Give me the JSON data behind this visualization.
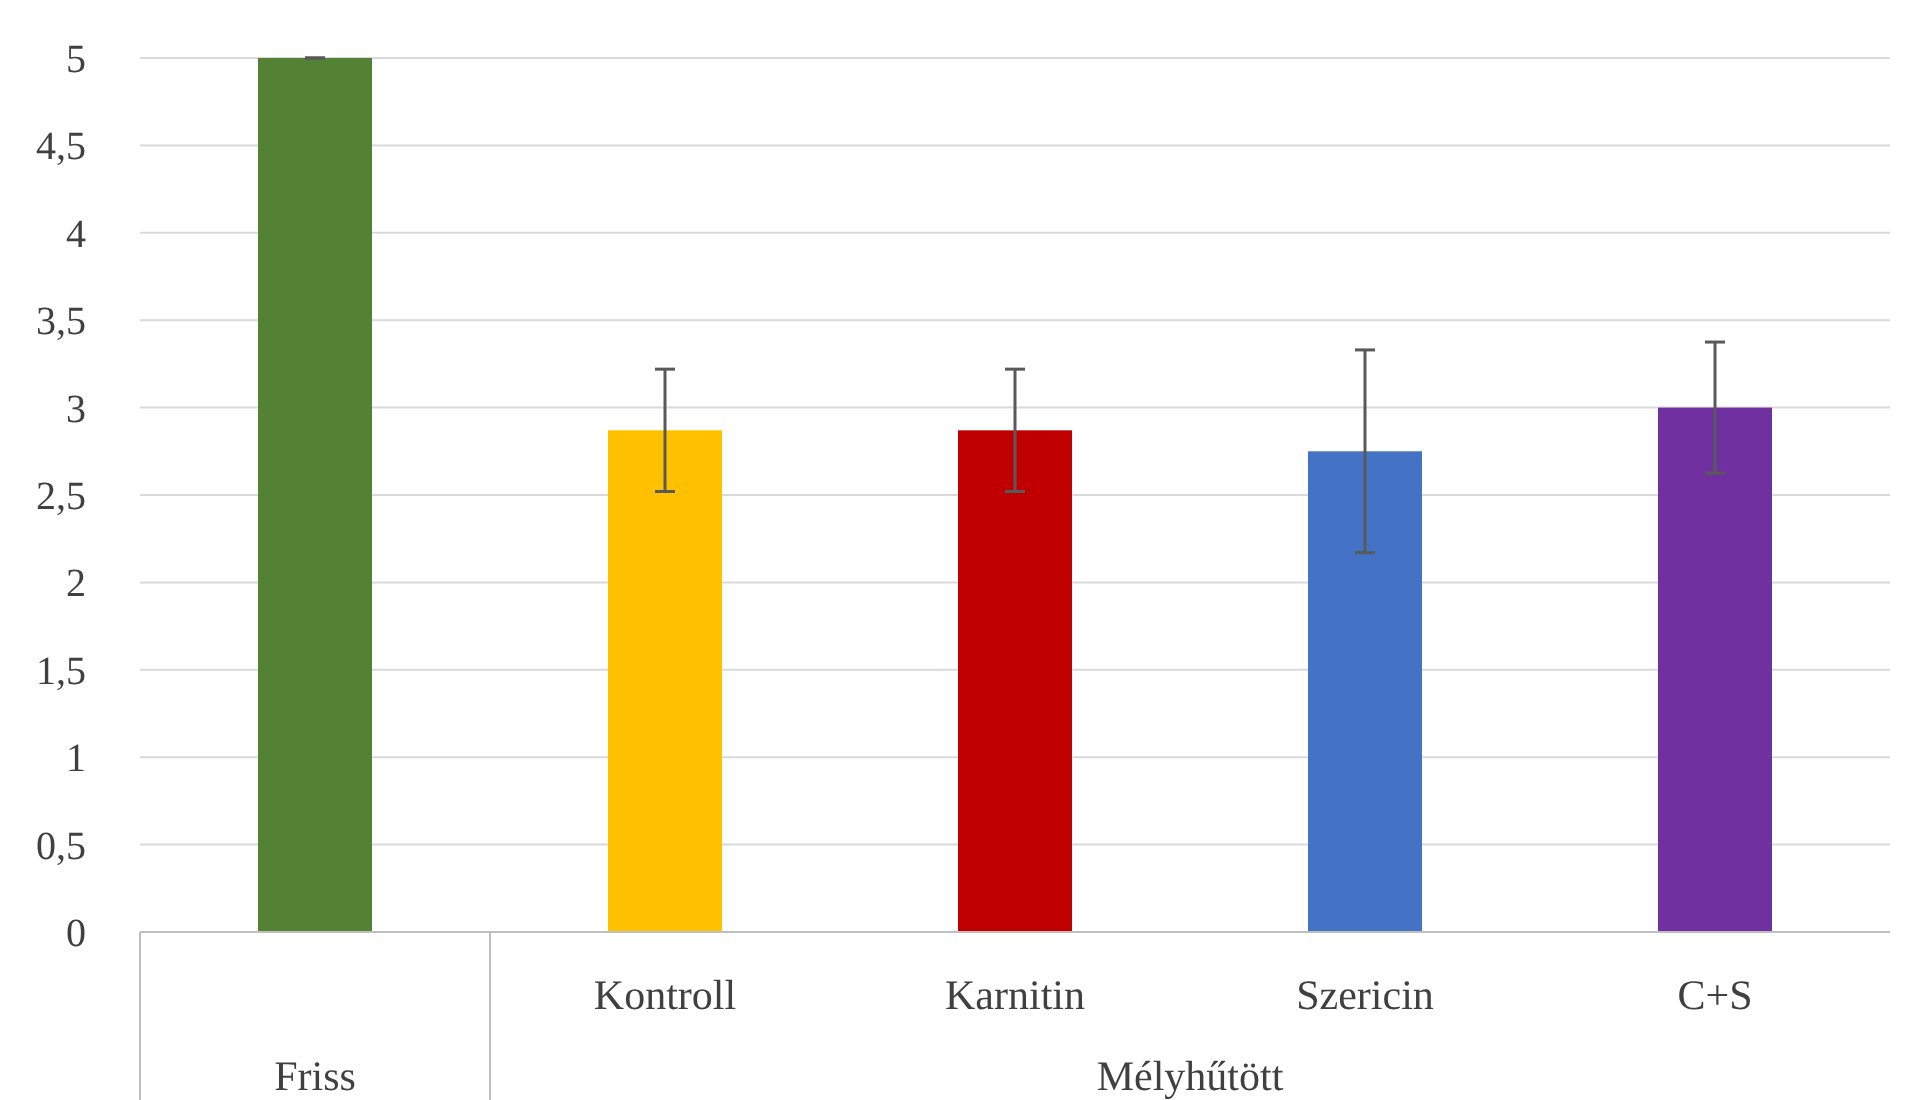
{
  "chart_data": {
    "type": "bar",
    "categories": [
      null,
      "Kontroll",
      "Karnitin",
      "Szericin",
      "C+S"
    ],
    "values": [
      5,
      2.87,
      2.87,
      2.75,
      3.0
    ],
    "colors": [
      "#548235",
      "#ffc000",
      "#c00000",
      "#4472c4",
      "#7030a0"
    ],
    "errors": [
      0,
      0.35,
      0.35,
      0.58,
      0.375
    ],
    "ylim": [
      0,
      5
    ],
    "yticks": [
      0,
      {
        "value": 0.5,
        "label": "0,5"
      },
      1,
      {
        "value": 1.5,
        "label": "1,5"
      },
      2,
      {
        "value": 2.5,
        "label": "2,5"
      },
      3,
      {
        "value": 3.5,
        "label": "3,5"
      },
      4,
      {
        "value": 4.5,
        "label": "4,5"
      },
      5
    ],
    "grid": "y",
    "annotations": [
      "Friss",
      "Mélyhűtött"
    ]
  }
}
